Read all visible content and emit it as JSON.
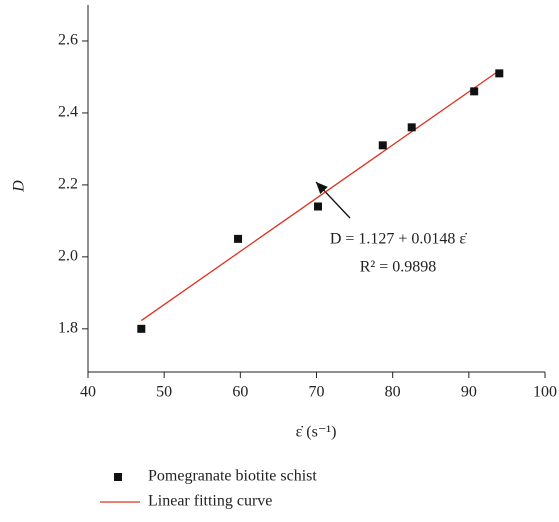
{
  "chart_data": {
    "type": "scatter",
    "x_label": "ε̇ (s⁻¹)",
    "y_label": "D",
    "series": [
      {
        "name": "Pomegranate biotite schist",
        "color": "#111111",
        "kind": "points",
        "x": [
          47,
          59.7,
          70.2,
          78.7,
          82.5,
          90.7,
          94
        ],
        "values": [
          1.8,
          2.05,
          2.14,
          2.31,
          2.36,
          2.46,
          2.51
        ]
      },
      {
        "name": "Linear fitting curve",
        "color": "#e0301e",
        "kind": "line",
        "x": [
          47,
          94
        ],
        "values": [
          1.823,
          2.518
        ]
      }
    ],
    "annotations": [
      "D = 1.127 + 0.0148 ε̇",
      "R² = 0.9898"
    ],
    "xlim": [
      40,
      100
    ],
    "xticks": [
      40,
      50,
      60,
      70,
      80,
      90,
      100
    ],
    "ylim": [
      1.68,
      2.7
    ],
    "yticks": [
      {
        "value": 1.8,
        "label": "1.8"
      },
      {
        "value": 2.0,
        "label": "2.0"
      },
      {
        "value": 2.2,
        "label": "2.2"
      },
      {
        "value": 2.4,
        "label": "2.4"
      },
      {
        "value": 2.6,
        "label": "2.6"
      }
    ],
    "grid": false,
    "legend": "bottom"
  }
}
